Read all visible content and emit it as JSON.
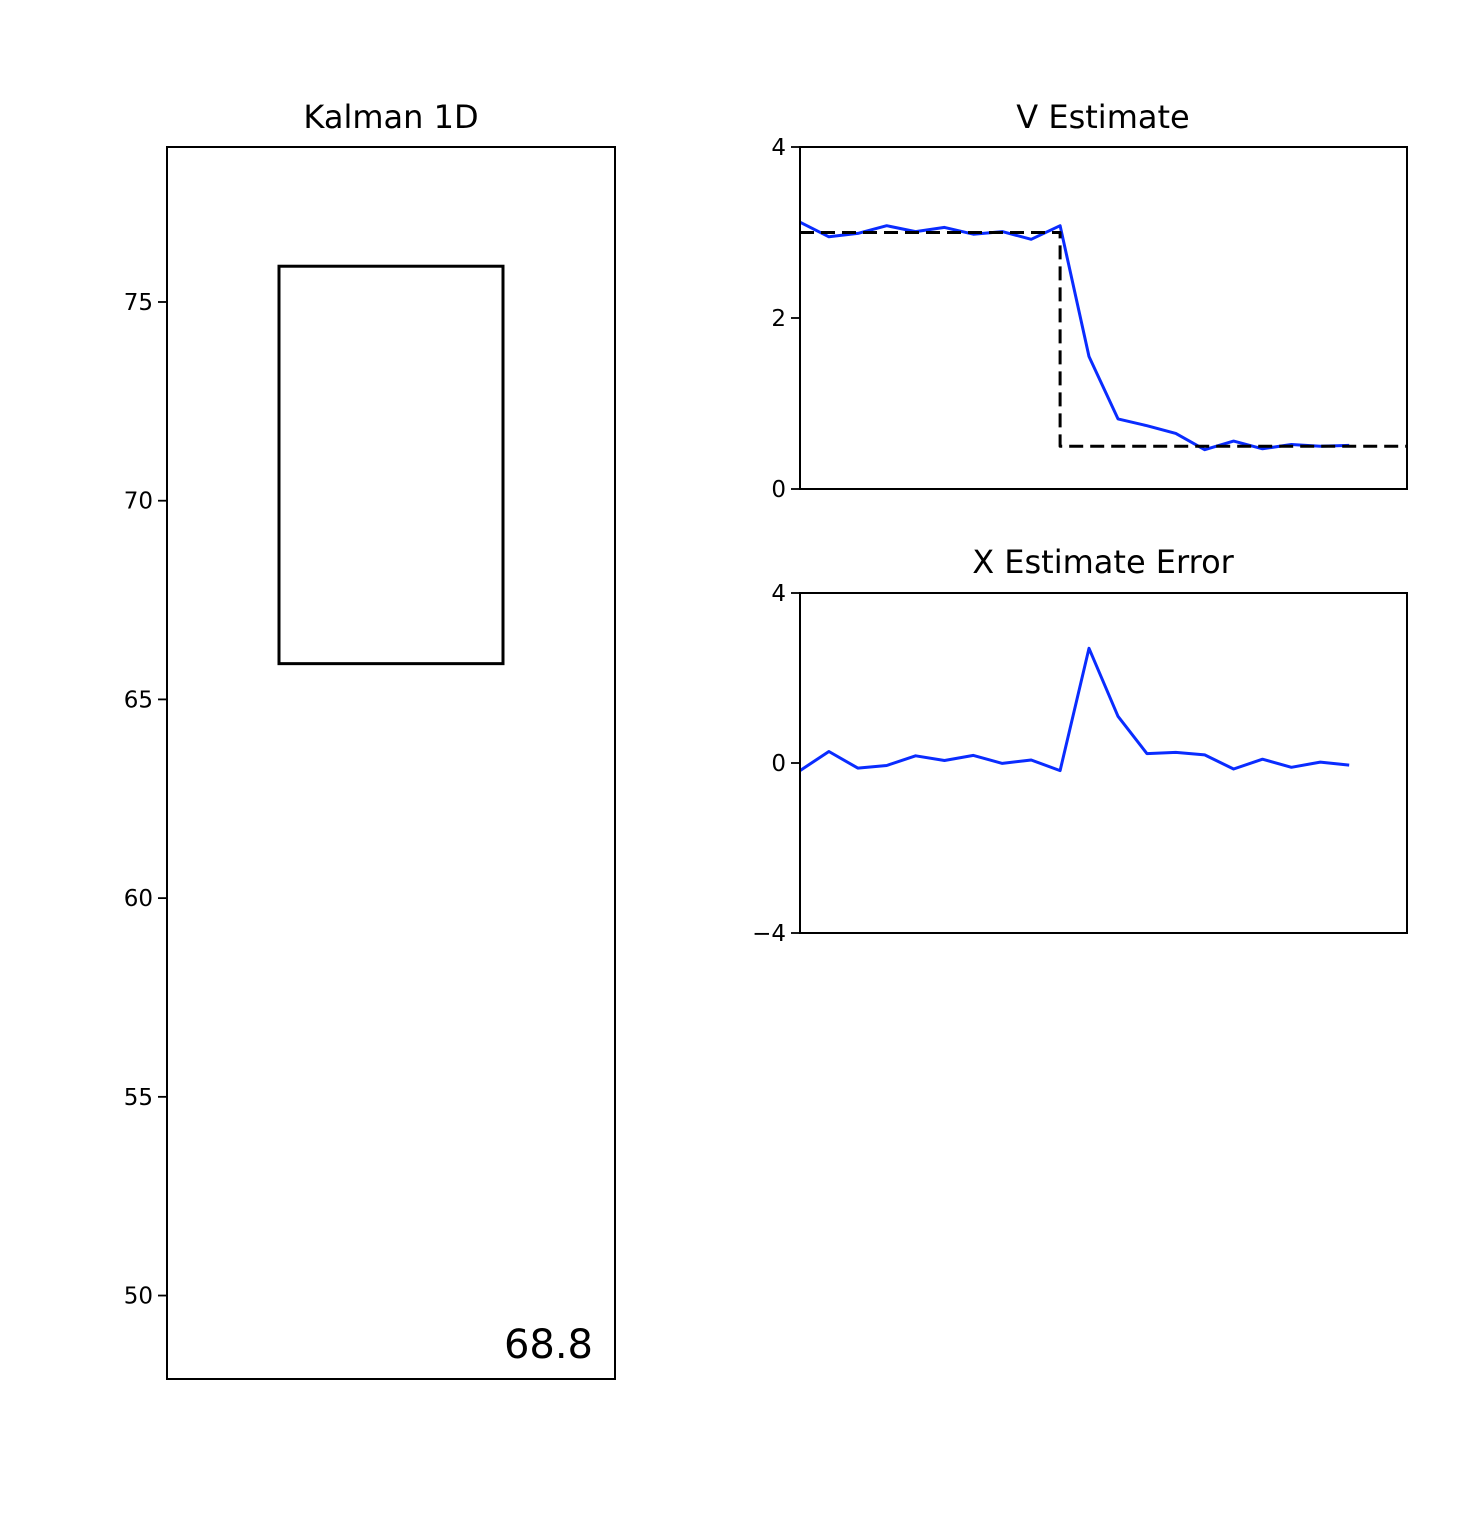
{
  "colors": {
    "estimate": "#0a2cff",
    "truth": "#000000",
    "box": "#000000"
  },
  "chart_data": [
    {
      "type": "other",
      "subtype": "box-position",
      "title": "Kalman 1D",
      "ylim": [
        47.9,
        78.9
      ],
      "yticks": [
        50,
        55,
        60,
        65,
        70,
        75
      ],
      "xticks": [],
      "box": {
        "x_range": [
          0.25,
          0.75
        ],
        "y_range": [
          65.9,
          75.9
        ]
      },
      "annotation": "68.8"
    },
    {
      "type": "line",
      "title": "V Estimate",
      "ylim": [
        0,
        4
      ],
      "yticks": [
        0,
        2,
        4
      ],
      "xticks": [],
      "xlim": [
        0,
        21
      ],
      "series": [
        {
          "style": "solid",
          "x": [
            0,
            1,
            2,
            3,
            4,
            5,
            6,
            7,
            8,
            9,
            10,
            11,
            12,
            13,
            14,
            15,
            16,
            17,
            18,
            19
          ],
          "values": [
            3.12,
            2.95,
            2.99,
            3.08,
            3.01,
            3.06,
            2.98,
            3.01,
            2.92,
            3.08,
            1.55,
            0.82,
            0.74,
            0.65,
            0.46,
            0.56,
            0.47,
            0.52,
            0.5,
            0.51
          ]
        },
        {
          "style": "dashed",
          "x": [
            0,
            9,
            9,
            21
          ],
          "values": [
            3.0,
            3.0,
            0.5,
            0.5
          ]
        }
      ]
    },
    {
      "type": "line",
      "title": "X Estimate Error",
      "ylim": [
        -4,
        4
      ],
      "yticks": [
        -4,
        0,
        4
      ],
      "xticks": [],
      "xlim": [
        0,
        21
      ],
      "series": [
        {
          "style": "solid",
          "x": [
            0,
            1,
            2,
            3,
            4,
            5,
            6,
            7,
            8,
            9,
            10,
            11,
            12,
            13,
            14,
            15,
            16,
            17,
            18,
            19
          ],
          "values": [
            -0.18,
            0.27,
            -0.12,
            -0.06,
            0.17,
            0.06,
            0.18,
            -0.01,
            0.07,
            -0.18,
            2.7,
            1.1,
            0.22,
            0.25,
            0.19,
            -0.14,
            0.09,
            -0.1,
            0.02,
            -0.05
          ]
        }
      ]
    }
  ]
}
